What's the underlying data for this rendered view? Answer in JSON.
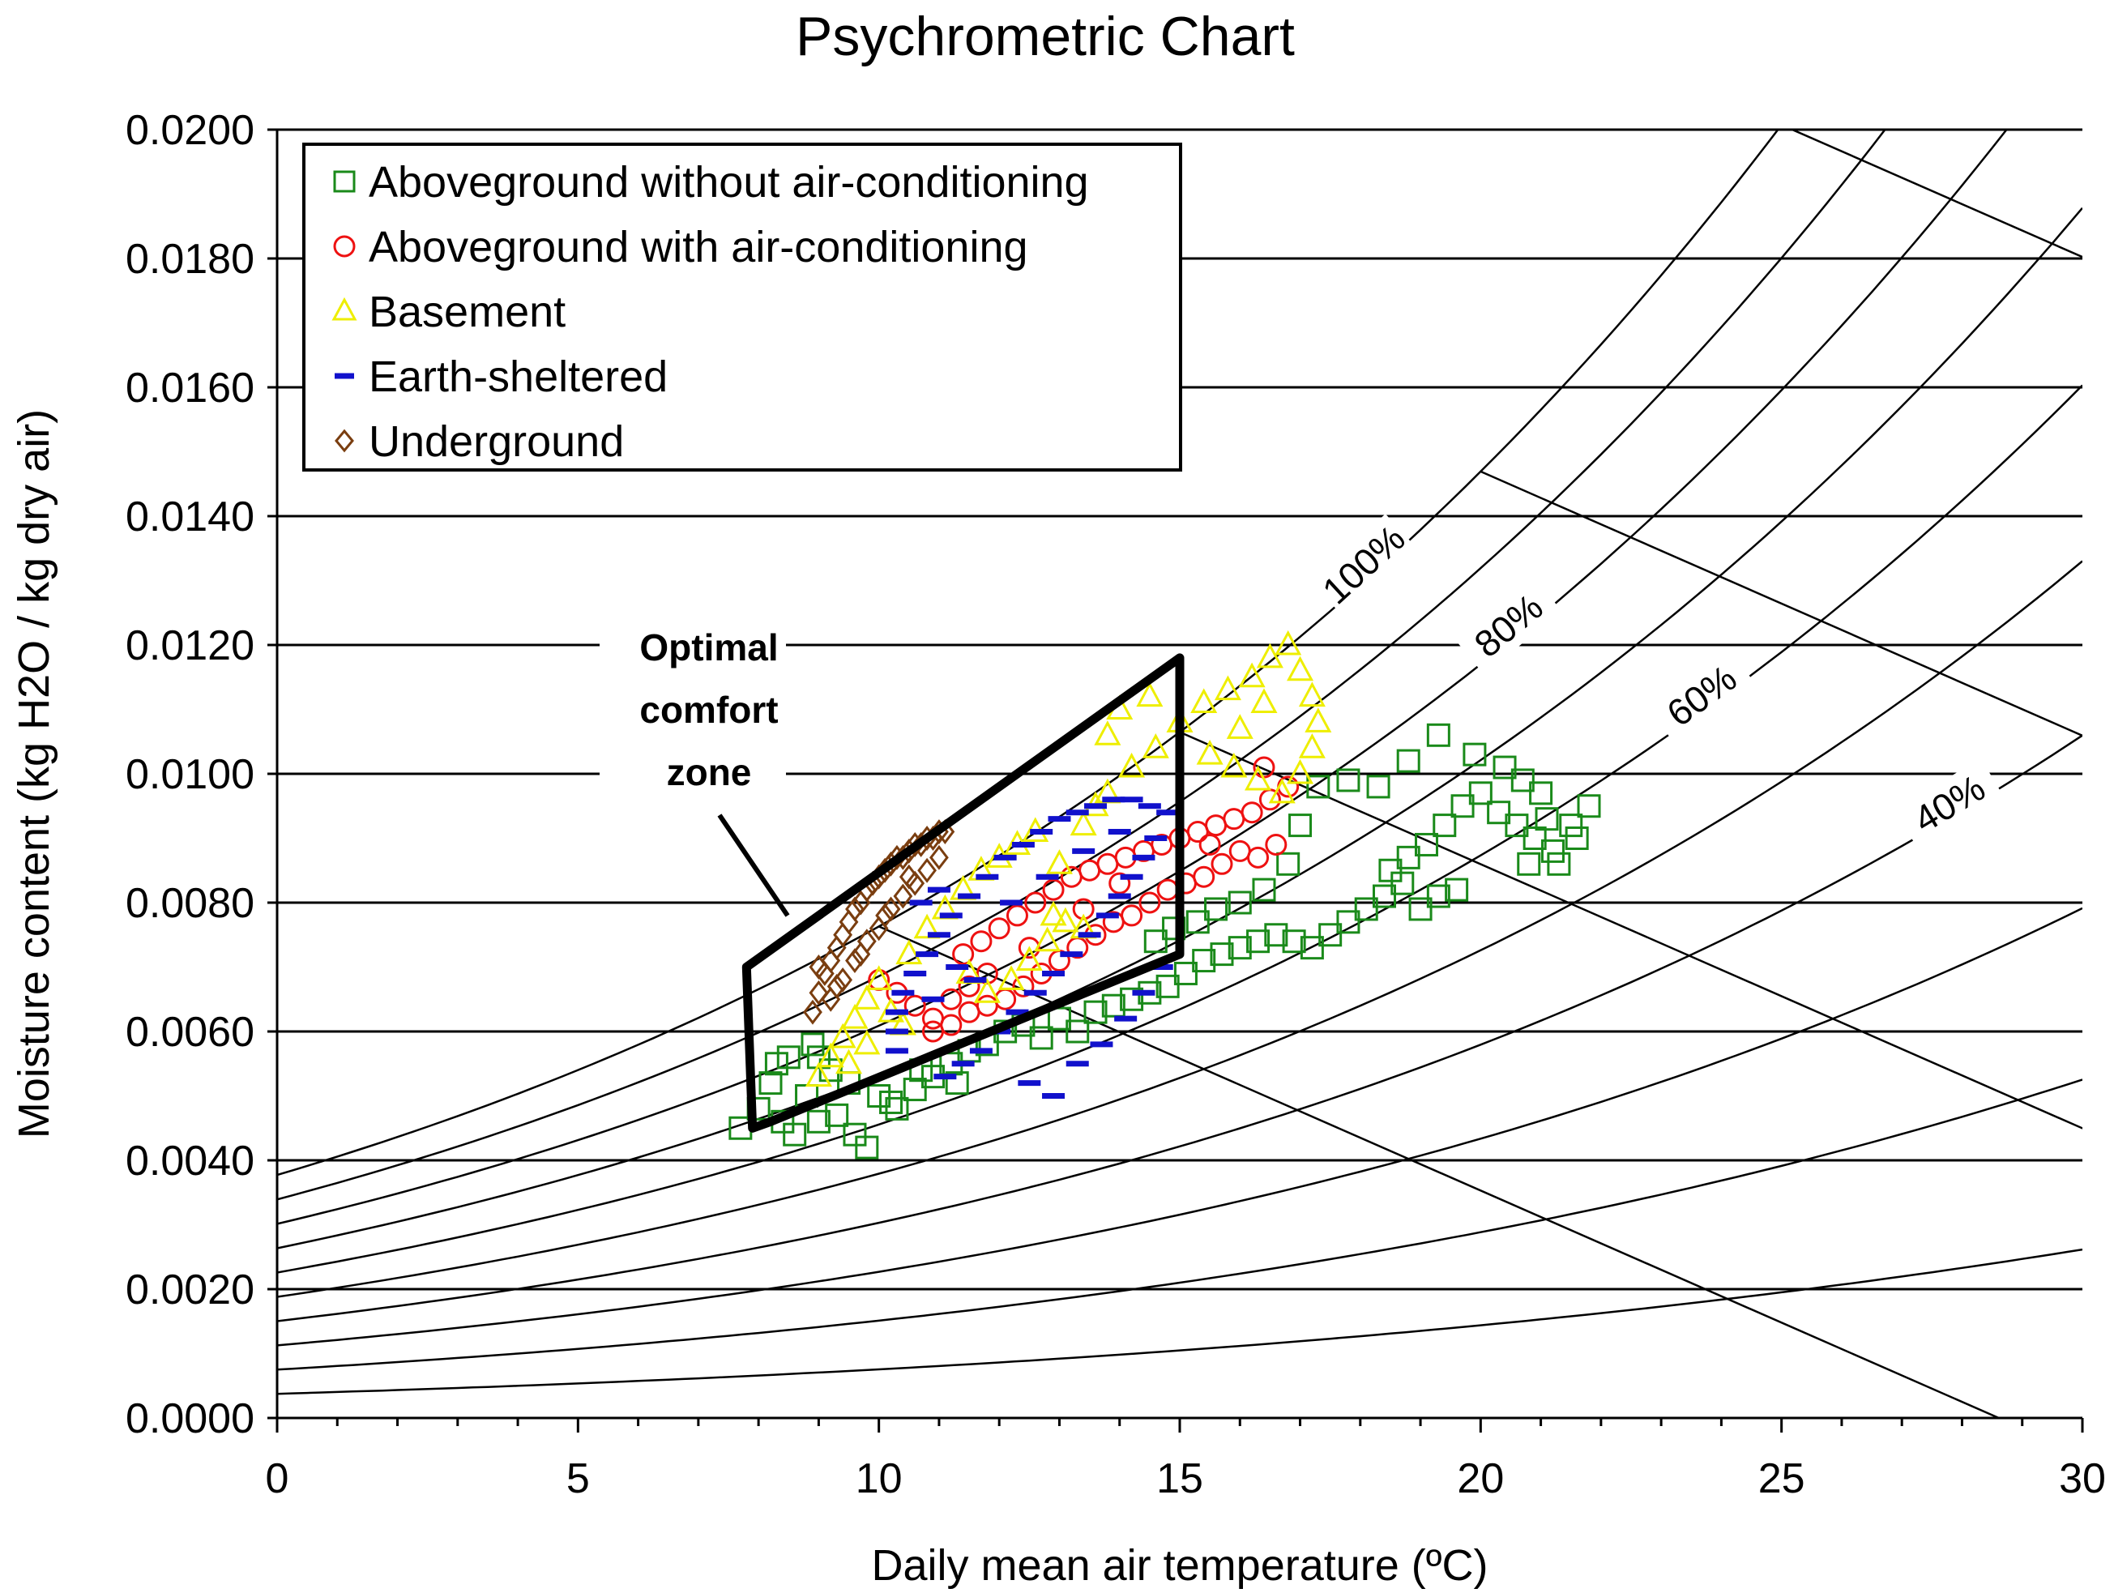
{
  "chart_data": {
    "type": "scatter",
    "title": "Psychrometric Chart",
    "xlabel": "Daily mean air temperature (ºC)",
    "ylabel": "Moisture content (kg H2O / kg dry air)",
    "xlim": [
      0,
      30
    ],
    "ylim": [
      0,
      0.02
    ],
    "x_ticks": [
      0,
      5,
      10,
      15,
      20,
      25,
      30
    ],
    "x_tick_labels": [
      "0",
      "5",
      "10",
      "15",
      "20",
      "25",
      "30"
    ],
    "y_ticks": [
      0,
      0.002,
      0.004,
      0.006,
      0.008,
      0.01,
      0.012,
      0.014,
      0.016,
      0.018,
      0.02
    ],
    "y_tick_labels": [
      "0.0000",
      "0.0020",
      "0.0040",
      "0.0060",
      "0.0080",
      "0.0100",
      "0.0120",
      "0.0140",
      "0.0160",
      "0.0180",
      "0.0200"
    ],
    "grid": "horizontal",
    "legend_position": "top-left",
    "rh_curves": [
      10,
      20,
      30,
      40,
      50,
      60,
      70,
      80,
      90,
      100
    ],
    "rh_labels": [
      {
        "rh": 100,
        "text": "100%"
      },
      {
        "rh": 80,
        "text": "80%"
      },
      {
        "rh": 60,
        "text": "60%"
      },
      {
        "rh": 40,
        "text": "40%"
      }
    ],
    "comfort_zone": {
      "label_lines": [
        "Optimal",
        "comfort",
        "zone"
      ],
      "polygon": [
        [
          7.9,
          0.0045
        ],
        [
          7.8,
          0.007
        ],
        [
          15.0,
          0.0118
        ],
        [
          15.0,
          0.0072
        ],
        [
          8.2,
          0.0046
        ]
      ]
    },
    "series": [
      {
        "name": "Aboveground without air-conditioning",
        "marker": "square",
        "color": "#1a8a1a",
        "points": [
          [
            7.7,
            0.0045
          ],
          [
            8.0,
            0.0048
          ],
          [
            8.2,
            0.0052
          ],
          [
            8.4,
            0.0046
          ],
          [
            8.6,
            0.0044
          ],
          [
            8.8,
            0.005
          ],
          [
            9.0,
            0.0046
          ],
          [
            9.3,
            0.0047
          ],
          [
            9.6,
            0.0044
          ],
          [
            9.8,
            0.0042
          ],
          [
            8.5,
            0.0056
          ],
          [
            8.9,
            0.0058
          ],
          [
            9.2,
            0.0054
          ],
          [
            9.5,
            0.0052
          ],
          [
            10.0,
            0.005
          ],
          [
            10.3,
            0.0048
          ],
          [
            10.6,
            0.0051
          ],
          [
            10.9,
            0.0053
          ],
          [
            11.2,
            0.0055
          ],
          [
            11.5,
            0.0057
          ],
          [
            11.8,
            0.0058
          ],
          [
            12.1,
            0.006
          ],
          [
            12.4,
            0.0061
          ],
          [
            12.7,
            0.0059
          ],
          [
            13.0,
            0.0062
          ],
          [
            13.3,
            0.006
          ],
          [
            13.6,
            0.0063
          ],
          [
            13.9,
            0.0064
          ],
          [
            14.2,
            0.0065
          ],
          [
            14.5,
            0.0066
          ],
          [
            14.8,
            0.0067
          ],
          [
            15.1,
            0.0069
          ],
          [
            15.4,
            0.0071
          ],
          [
            15.7,
            0.0072
          ],
          [
            16.0,
            0.0073
          ],
          [
            16.3,
            0.0074
          ],
          [
            16.6,
            0.0075
          ],
          [
            16.9,
            0.0074
          ],
          [
            17.2,
            0.0073
          ],
          [
            17.5,
            0.0075
          ],
          [
            17.8,
            0.0077
          ],
          [
            18.1,
            0.0079
          ],
          [
            18.4,
            0.0081
          ],
          [
            18.7,
            0.0083
          ],
          [
            19.0,
            0.0079
          ],
          [
            19.3,
            0.0081
          ],
          [
            19.6,
            0.0082
          ],
          [
            18.5,
            0.0085
          ],
          [
            18.8,
            0.0087
          ],
          [
            19.1,
            0.0089
          ],
          [
            19.4,
            0.0092
          ],
          [
            19.7,
            0.0095
          ],
          [
            20.0,
            0.0097
          ],
          [
            20.3,
            0.0094
          ],
          [
            20.6,
            0.0092
          ],
          [
            20.9,
            0.009
          ],
          [
            21.2,
            0.0088
          ],
          [
            21.5,
            0.0092
          ],
          [
            21.8,
            0.0095
          ],
          [
            21.0,
            0.0097
          ],
          [
            20.7,
            0.0099
          ],
          [
            20.4,
            0.0101
          ],
          [
            19.9,
            0.0103
          ],
          [
            19.3,
            0.0106
          ],
          [
            18.8,
            0.0102
          ],
          [
            18.3,
            0.0098
          ],
          [
            17.8,
            0.0099
          ],
          [
            17.3,
            0.0098
          ],
          [
            17.0,
            0.0092
          ],
          [
            16.8,
            0.0086
          ],
          [
            16.4,
            0.0082
          ],
          [
            16.0,
            0.008
          ],
          [
            15.6,
            0.0079
          ],
          [
            15.3,
            0.0077
          ],
          [
            14.9,
            0.0076
          ],
          [
            14.6,
            0.0074
          ],
          [
            10.2,
            0.0049
          ],
          [
            10.7,
            0.0054
          ],
          [
            11.3,
            0.0052
          ],
          [
            9.0,
            0.0056
          ],
          [
            8.3,
            0.0055
          ],
          [
            21.3,
            0.0086
          ],
          [
            20.8,
            0.0086
          ],
          [
            21.6,
            0.009
          ],
          [
            21.1,
            0.0093
          ]
        ]
      },
      {
        "name": "Aboveground with air-conditioning",
        "marker": "circle",
        "color": "#ee1111",
        "points": [
          [
            10.0,
            0.0068
          ],
          [
            10.3,
            0.0066
          ],
          [
            10.6,
            0.0064
          ],
          [
            10.9,
            0.0062
          ],
          [
            11.2,
            0.0065
          ],
          [
            11.5,
            0.0067
          ],
          [
            11.8,
            0.0069
          ],
          [
            11.4,
            0.0072
          ],
          [
            11.7,
            0.0074
          ],
          [
            12.0,
            0.0076
          ],
          [
            12.3,
            0.0078
          ],
          [
            12.6,
            0.008
          ],
          [
            12.9,
            0.0082
          ],
          [
            13.2,
            0.0084
          ],
          [
            13.5,
            0.0085
          ],
          [
            13.8,
            0.0086
          ],
          [
            14.1,
            0.0087
          ],
          [
            14.4,
            0.0088
          ],
          [
            14.7,
            0.0089
          ],
          [
            15.0,
            0.009
          ],
          [
            15.3,
            0.0091
          ],
          [
            15.6,
            0.0092
          ],
          [
            15.9,
            0.0093
          ],
          [
            16.2,
            0.0094
          ],
          [
            16.5,
            0.0096
          ],
          [
            16.8,
            0.0098
          ],
          [
            16.6,
            0.0089
          ],
          [
            16.3,
            0.0087
          ],
          [
            16.0,
            0.0088
          ],
          [
            15.7,
            0.0086
          ],
          [
            15.4,
            0.0084
          ],
          [
            15.1,
            0.0083
          ],
          [
            14.8,
            0.0082
          ],
          [
            14.5,
            0.008
          ],
          [
            14.2,
            0.0078
          ],
          [
            13.9,
            0.0077
          ],
          [
            13.6,
            0.0075
          ],
          [
            13.3,
            0.0073
          ],
          [
            13.0,
            0.0071
          ],
          [
            12.7,
            0.0069
          ],
          [
            12.4,
            0.0067
          ],
          [
            12.1,
            0.0065
          ],
          [
            11.8,
            0.0064
          ],
          [
            11.5,
            0.0063
          ],
          [
            11.2,
            0.0061
          ],
          [
            10.9,
            0.006
          ],
          [
            12.5,
            0.0073
          ],
          [
            13.4,
            0.0079
          ],
          [
            14.0,
            0.0083
          ],
          [
            15.5,
            0.0089
          ],
          [
            16.4,
            0.0101
          ]
        ]
      },
      {
        "name": "Basement",
        "marker": "triangle",
        "color": "#eeee00",
        "points": [
          [
            9.0,
            0.0053
          ],
          [
            9.2,
            0.0056
          ],
          [
            9.4,
            0.0059
          ],
          [
            9.6,
            0.0062
          ],
          [
            9.8,
            0.0065
          ],
          [
            10.0,
            0.0068
          ],
          [
            10.2,
            0.0063
          ],
          [
            9.5,
            0.0055
          ],
          [
            9.8,
            0.0058
          ],
          [
            10.5,
            0.0072
          ],
          [
            10.8,
            0.0076
          ],
          [
            11.1,
            0.0079
          ],
          [
            11.4,
            0.0082
          ],
          [
            11.7,
            0.0085
          ],
          [
            12.0,
            0.0087
          ],
          [
            12.3,
            0.0089
          ],
          [
            12.6,
            0.0091
          ],
          [
            12.2,
            0.0068
          ],
          [
            12.5,
            0.0071
          ],
          [
            12.8,
            0.0074
          ],
          [
            13.1,
            0.0077
          ],
          [
            13.4,
            0.0076
          ],
          [
            13.0,
            0.0086
          ],
          [
            13.4,
            0.0092
          ],
          [
            13.8,
            0.0097
          ],
          [
            14.2,
            0.0101
          ],
          [
            14.6,
            0.0104
          ],
          [
            15.0,
            0.0108
          ],
          [
            15.4,
            0.0111
          ],
          [
            15.8,
            0.0113
          ],
          [
            16.2,
            0.0115
          ],
          [
            16.5,
            0.0118
          ],
          [
            16.8,
            0.012
          ],
          [
            17.0,
            0.0116
          ],
          [
            17.2,
            0.0112
          ],
          [
            17.3,
            0.0108
          ],
          [
            17.2,
            0.0104
          ],
          [
            17.0,
            0.01
          ],
          [
            16.7,
            0.0097
          ],
          [
            16.3,
            0.0099
          ],
          [
            15.9,
            0.0101
          ],
          [
            15.5,
            0.0103
          ],
          [
            16.0,
            0.0107
          ],
          [
            16.4,
            0.0111
          ],
          [
            14.5,
            0.0112
          ],
          [
            14.0,
            0.011
          ],
          [
            13.8,
            0.0106
          ],
          [
            11.8,
            0.0066
          ],
          [
            11.5,
            0.0069
          ],
          [
            12.9,
            0.0078
          ],
          [
            13.6,
            0.0095
          ],
          [
            10.4,
            0.0061
          ]
        ]
      },
      {
        "name": "Earth-sheltered",
        "marker": "dash",
        "color": "#1111cc",
        "points": [
          [
            10.3,
            0.0057
          ],
          [
            10.3,
            0.006
          ],
          [
            10.3,
            0.0063
          ],
          [
            10.4,
            0.0066
          ],
          [
            10.6,
            0.0069
          ],
          [
            10.8,
            0.0072
          ],
          [
            11.0,
            0.0075
          ],
          [
            11.2,
            0.0078
          ],
          [
            11.5,
            0.0081
          ],
          [
            11.8,
            0.0084
          ],
          [
            12.1,
            0.0087
          ],
          [
            12.4,
            0.0089
          ],
          [
            12.7,
            0.0091
          ],
          [
            13.0,
            0.0093
          ],
          [
            13.3,
            0.0094
          ],
          [
            13.6,
            0.0095
          ],
          [
            13.9,
            0.0096
          ],
          [
            14.2,
            0.0096
          ],
          [
            14.5,
            0.0095
          ],
          [
            14.8,
            0.0094
          ],
          [
            14.6,
            0.009
          ],
          [
            14.4,
            0.0087
          ],
          [
            14.2,
            0.0084
          ],
          [
            14.0,
            0.0081
          ],
          [
            13.8,
            0.0078
          ],
          [
            13.5,
            0.0075
          ],
          [
            13.2,
            0.0072
          ],
          [
            12.9,
            0.0069
          ],
          [
            12.6,
            0.0066
          ],
          [
            12.3,
            0.0063
          ],
          [
            12.0,
            0.006
          ],
          [
            11.7,
            0.0057
          ],
          [
            11.4,
            0.0055
          ],
          [
            11.1,
            0.0053
          ],
          [
            12.5,
            0.0052
          ],
          [
            12.9,
            0.005
          ],
          [
            13.3,
            0.0055
          ],
          [
            13.7,
            0.0058
          ],
          [
            14.1,
            0.0062
          ],
          [
            14.4,
            0.0066
          ],
          [
            14.7,
            0.007
          ],
          [
            10.9,
            0.0065
          ],
          [
            11.3,
            0.007
          ],
          [
            11.6,
            0.0068
          ],
          [
            12.2,
            0.008
          ],
          [
            12.8,
            0.0084
          ],
          [
            13.4,
            0.0088
          ],
          [
            14.0,
            0.0091
          ],
          [
            10.7,
            0.008
          ],
          [
            11.0,
            0.0082
          ]
        ]
      },
      {
        "name": "Underground",
        "marker": "diamond",
        "color": "#7a3e10",
        "points": [
          [
            8.9,
            0.0063
          ],
          [
            9.0,
            0.0066
          ],
          [
            9.1,
            0.0069
          ],
          [
            9.2,
            0.0071
          ],
          [
            9.3,
            0.0073
          ],
          [
            9.4,
            0.0075
          ],
          [
            9.5,
            0.0077
          ],
          [
            9.6,
            0.0079
          ],
          [
            9.7,
            0.008
          ],
          [
            9.8,
            0.0082
          ],
          [
            9.9,
            0.0083
          ],
          [
            10.0,
            0.0084
          ],
          [
            10.1,
            0.0085
          ],
          [
            10.2,
            0.0086
          ],
          [
            10.3,
            0.0087
          ],
          [
            10.4,
            0.0087
          ],
          [
            10.5,
            0.0088
          ],
          [
            10.6,
            0.0089
          ],
          [
            10.7,
            0.0089
          ],
          [
            10.8,
            0.009
          ],
          [
            10.9,
            0.009
          ],
          [
            11.0,
            0.0091
          ],
          [
            11.1,
            0.0091
          ],
          [
            9.2,
            0.0065
          ],
          [
            9.4,
            0.0068
          ],
          [
            9.6,
            0.0071
          ],
          [
            9.8,
            0.0074
          ],
          [
            10.0,
            0.0076
          ],
          [
            10.2,
            0.0079
          ],
          [
            10.4,
            0.0081
          ],
          [
            10.6,
            0.0083
          ],
          [
            10.8,
            0.0085
          ],
          [
            11.0,
            0.0087
          ],
          [
            9.0,
            0.007
          ],
          [
            9.3,
            0.0067
          ],
          [
            9.7,
            0.0072
          ],
          [
            10.1,
            0.0078
          ],
          [
            10.5,
            0.0084
          ]
        ]
      }
    ]
  }
}
